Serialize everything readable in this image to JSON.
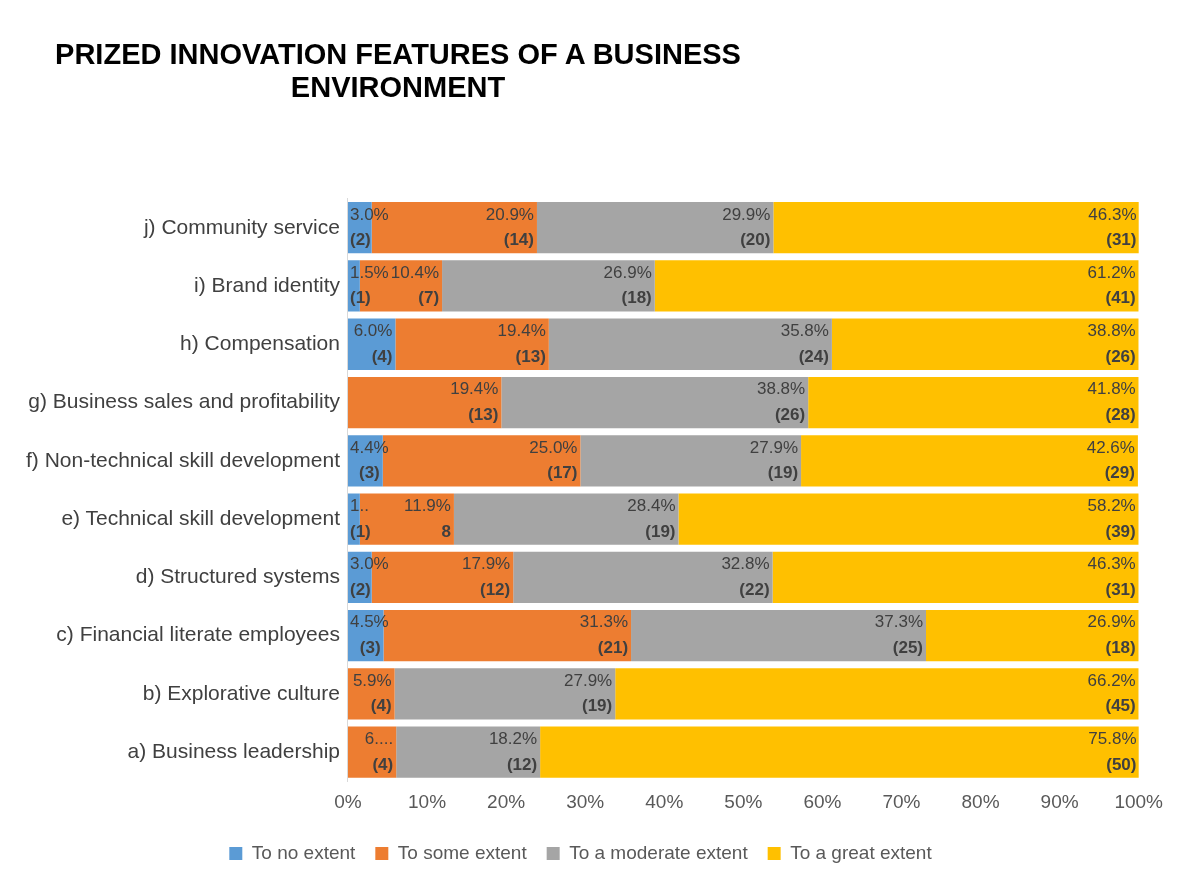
{
  "chart_data": {
    "type": "bar",
    "orientation": "horizontal",
    "stacked": true,
    "title": "PRIZED INNOVATION FEATURES OF A BUSINESS ENVIRONMENT",
    "categories": [
      "j) Community service",
      "i) Brand identity",
      "h) Compensation",
      "g) Business sales and profitability",
      "f) Non-technical skill development",
      "e) Technical skill development",
      "d) Structured systems",
      "c) Financial literate employees",
      "b) Explorative culture",
      "a) Business leadership"
    ],
    "series": [
      {
        "name": "To no extent",
        "color": "#5b9bd5",
        "values": [
          3.0,
          1.5,
          6.0,
          null,
          4.4,
          1.5,
          3.0,
          4.5,
          null,
          null
        ],
        "value_labels": [
          "3.0%\n(2)",
          "1.5%\n(1)",
          "6.0%\n(4)",
          null,
          "4.4%\n(3)",
          "1..\n(1)",
          "3.0%\n(2)",
          "4.5%\n(3)",
          null,
          null
        ]
      },
      {
        "name": "To some extent",
        "color": "#ed7d31",
        "values": [
          20.9,
          10.4,
          19.4,
          19.4,
          25.0,
          11.9,
          17.9,
          31.3,
          5.9,
          6.1
        ],
        "value_labels": [
          "20.9%\n(14)",
          "10.4%\n(7)",
          "19.4%\n(13)",
          "19.4%\n(13)",
          "25.0%\n(17)",
          "11.9%\n8",
          "17.9%\n(12)",
          "31.3%\n(21)",
          "5.9%\n(4)",
          "6....\n(4)"
        ]
      },
      {
        "name": "To a moderate extent",
        "color": "#a5a5a5",
        "values": [
          29.9,
          26.9,
          35.8,
          38.8,
          27.9,
          28.4,
          32.8,
          37.3,
          27.9,
          18.2
        ],
        "value_labels": [
          "29.9%\n(20)",
          "26.9%\n(18)",
          "35.8%\n(24)",
          "38.8%\n(26)",
          "27.9%\n(19)",
          "28.4%\n(19)",
          "32.8%\n(22)",
          "37.3%\n(25)",
          "27.9%\n(19)",
          "18.2%\n(12)"
        ]
      },
      {
        "name": "To a great extent",
        "color": "#ffc000",
        "values": [
          46.3,
          61.2,
          38.8,
          41.8,
          42.6,
          58.2,
          46.3,
          26.9,
          66.2,
          75.8
        ],
        "value_labels": [
          "46.3%\n(31)",
          "61.2%\n(41)",
          "38.8%\n(26)",
          "41.8%\n(28)",
          "42.6%\n(29)",
          "58.2%\n(39)",
          "46.3%\n(31)",
          "26.9%\n(18)",
          "66.2%\n(45)",
          "75.8%\n(50)"
        ]
      }
    ],
    "xlim": [
      0,
      100
    ],
    "xticks": [
      {
        "value": 0,
        "label": "0%"
      },
      {
        "value": 10,
        "label": "10%"
      },
      {
        "value": 20,
        "label": "20%"
      },
      {
        "value": 30,
        "label": "30%"
      },
      {
        "value": 40,
        "label": "40%"
      },
      {
        "value": 50,
        "label": "50%"
      },
      {
        "value": 60,
        "label": "60%"
      },
      {
        "value": 70,
        "label": "70%"
      },
      {
        "value": 80,
        "label": "80%"
      },
      {
        "value": 90,
        "label": "90%"
      },
      {
        "value": 100,
        "label": "100%"
      }
    ],
    "grid": false,
    "legend": "bottom"
  }
}
